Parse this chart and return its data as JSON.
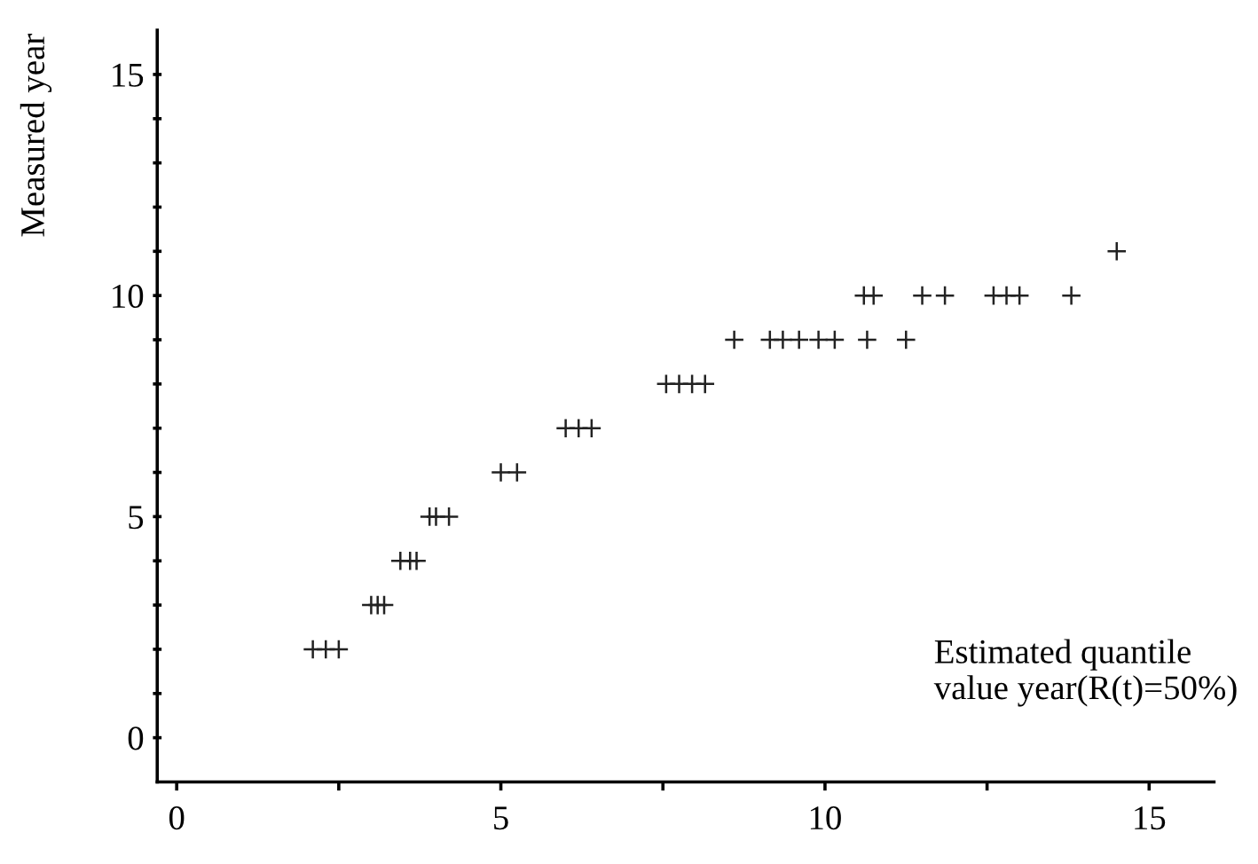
{
  "chart_data": {
    "type": "scatter",
    "xlabel": "Estimated quantile\nvalue year(R(t)=50%)",
    "ylabel": "Measured year",
    "x": [
      2.1,
      2.3,
      2.5,
      3.0,
      3.1,
      3.2,
      3.45,
      3.6,
      3.7,
      3.9,
      4.0,
      4.2,
      5.0,
      5.25,
      6.0,
      6.2,
      6.4,
      7.55,
      7.75,
      7.95,
      8.15,
      8.6,
      9.15,
      9.35,
      9.6,
      9.9,
      10.15,
      10.65,
      11.25,
      10.6,
      10.75,
      11.5,
      11.85,
      12.6,
      12.8,
      13.0,
      13.8,
      14.5
    ],
    "series": [
      {
        "color": "#222222",
        "values": [
          2,
          2,
          2,
          3,
          3,
          3,
          4,
          4,
          4,
          5,
          5,
          5,
          6,
          6,
          7,
          7,
          7,
          8,
          8,
          8,
          8,
          9,
          9,
          9,
          9,
          9,
          9,
          9,
          9,
          10,
          10,
          10,
          10,
          10,
          10,
          10,
          10,
          11
        ]
      }
    ],
    "marker": "cross",
    "grid": false,
    "legend": false,
    "xlim": [
      -0.3,
      16
    ],
    "ylim": [
      -1,
      16
    ],
    "xticks": [
      0,
      {
        "value": 2.5,
        "label": null
      },
      5,
      {
        "value": 7.5,
        "label": null
      },
      10,
      {
        "value": 12.5,
        "label": null
      },
      15
    ],
    "yticks": [
      0,
      {
        "value": 1,
        "label": null
      },
      {
        "value": 2,
        "label": null
      },
      {
        "value": 3,
        "label": null
      },
      {
        "value": 4,
        "label": null
      },
      5,
      {
        "value": 6,
        "label": null
      },
      {
        "value": 7,
        "label": null
      },
      {
        "value": 8,
        "label": null
      },
      {
        "value": 9,
        "label": null
      },
      10,
      {
        "value": 11,
        "label": null
      },
      {
        "value": 12,
        "label": null
      },
      {
        "value": 13,
        "label": null
      },
      {
        "value": 14,
        "label": null
      },
      15
    ]
  }
}
